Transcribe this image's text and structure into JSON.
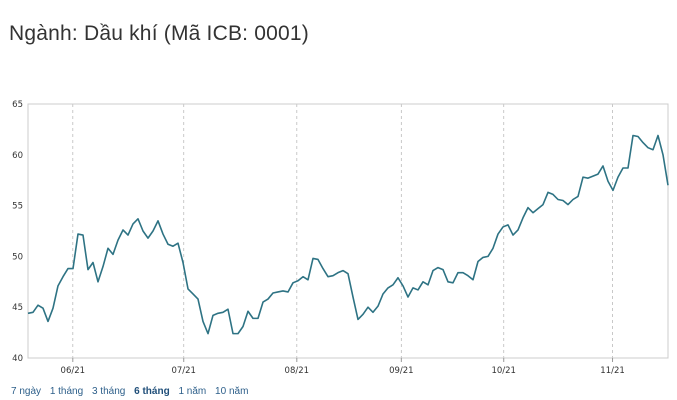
{
  "header": {
    "title": "Ngành: Dầu khí (Mã ICB: 0001)"
  },
  "ranges": [
    {
      "label": "7 ngày",
      "active": false
    },
    {
      "label": "1 tháng",
      "active": false
    },
    {
      "label": "3 tháng",
      "active": false
    },
    {
      "label": "6 tháng",
      "active": true
    },
    {
      "label": "1 năm",
      "active": false
    },
    {
      "label": "10 năm",
      "active": false
    }
  ],
  "colors": {
    "line": "#2e7384",
    "grid": "#d8d8d8",
    "axis": "#cccccc"
  },
  "chart_data": {
    "type": "line",
    "title": "",
    "xlabel": "",
    "ylabel": "",
    "ylim": [
      40,
      65
    ],
    "xlim": [
      0,
      150
    ],
    "y_ticks": [
      40,
      45,
      50,
      55,
      60,
      65
    ],
    "x_ticks": [
      {
        "label": "06/21",
        "x": 10.5
      },
      {
        "label": "07/21",
        "x": 36.5
      },
      {
        "label": "08/21",
        "x": 63
      },
      {
        "label": "09/21",
        "x": 87.5
      },
      {
        "label": "10/21",
        "x": 111.5
      },
      {
        "label": "11/21",
        "x": 137
      }
    ],
    "grid": true,
    "series": [
      {
        "values": [
          44.4,
          44.5,
          45.2,
          44.9,
          43.6,
          44.9,
          47.1,
          48.0,
          48.8,
          48.8,
          52.2,
          52.1,
          48.7,
          49.4,
          47.5,
          49.0,
          50.8,
          50.2,
          51.6,
          52.6,
          52.1,
          53.2,
          53.7,
          52.5,
          51.8,
          52.5,
          53.5,
          52.2,
          51.2,
          51.0,
          51.3,
          49.4,
          46.8,
          46.3,
          45.8,
          43.6,
          42.4,
          44.2,
          44.4,
          44.5,
          44.8,
          42.4,
          42.4,
          43.1,
          44.6,
          43.9,
          43.9,
          45.5,
          45.8,
          46.4,
          46.5,
          46.6,
          46.5,
          47.4,
          47.6,
          48.0,
          47.7,
          49.8,
          49.7,
          48.8,
          48.0,
          48.1,
          48.4,
          48.6,
          48.3,
          46.0,
          43.8,
          44.3,
          45.0,
          44.5,
          45.1,
          46.3,
          46.9,
          47.2,
          47.9,
          47.1,
          46.0,
          46.9,
          46.7,
          47.5,
          47.2,
          48.6,
          48.9,
          48.7,
          47.5,
          47.4,
          48.4,
          48.4,
          48.1,
          47.7,
          49.5,
          49.9,
          50.0,
          50.8,
          52.2,
          52.9,
          53.1,
          52.1,
          52.6,
          53.8,
          54.8,
          54.3,
          54.7,
          55.1,
          56.3,
          56.1,
          55.6,
          55.5,
          55.1,
          55.6,
          55.9,
          57.8,
          57.7,
          57.9,
          58.1,
          58.9,
          57.4,
          56.5,
          57.8,
          58.7,
          58.7,
          61.9,
          61.8,
          61.2,
          60.7,
          60.5,
          61.9,
          60.0,
          57.0
        ]
      }
    ]
  }
}
